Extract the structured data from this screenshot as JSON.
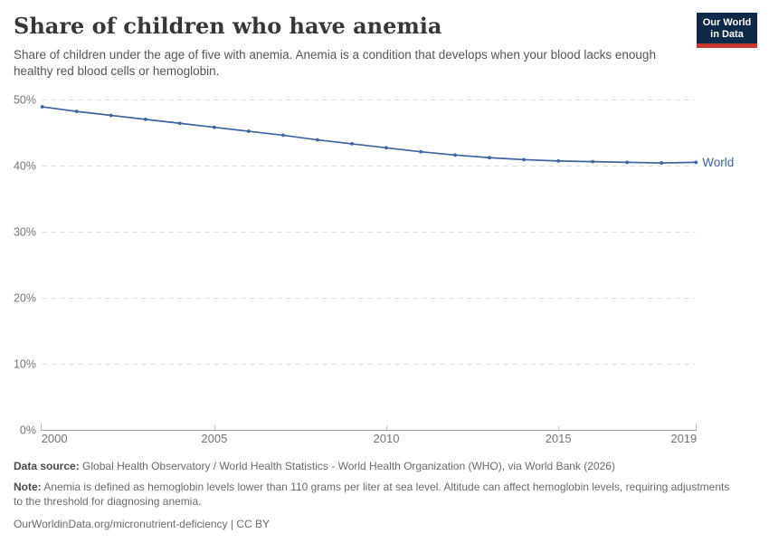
{
  "header": {
    "title": "Share of children who have anemia",
    "subtitle": "Share of children under the age of five with anemia. Anemia is a condition that develops when your blood lacks enough healthy red blood cells or hemoglobin.",
    "logo_line1": "Our World",
    "logo_line2": "in Data"
  },
  "colors": {
    "line": "#3f639e",
    "navy": "#0f2949",
    "red": "#c5392f",
    "grid": "#dcdcdc",
    "axis": "#a1a1a1",
    "minor_tick": "#bdbdbd",
    "tick_text": "#757575"
  },
  "chart_data": {
    "type": "line",
    "title": "Share of children who have anemia",
    "xlabel": "",
    "ylabel": "",
    "xlim": [
      2000,
      2019
    ],
    "ylim": [
      0,
      50
    ],
    "grid": "horizontal-dashed",
    "legend_position": "end-of-line-label",
    "x": [
      2000,
      2001,
      2002,
      2003,
      2004,
      2005,
      2006,
      2007,
      2008,
      2009,
      2010,
      2011,
      2012,
      2013,
      2014,
      2015,
      2016,
      2017,
      2018,
      2019
    ],
    "series": [
      {
        "name": "World",
        "color": "#3f639e",
        "values": [
          48.9,
          48.2,
          47.6,
          47.0,
          46.4,
          45.8,
          45.2,
          44.6,
          43.9,
          43.3,
          42.7,
          42.1,
          41.6,
          41.2,
          40.9,
          40.7,
          40.6,
          40.5,
          40.4,
          40.5
        ]
      }
    ],
    "y_ticks": [
      {
        "value": 0,
        "label": "0%"
      },
      {
        "value": 10,
        "label": "10%"
      },
      {
        "value": 20,
        "label": "20%"
      },
      {
        "value": 30,
        "label": "30%"
      },
      {
        "value": 40,
        "label": "40%"
      },
      {
        "value": 50,
        "label": "50%"
      }
    ],
    "x_ticks": [
      {
        "value": 2000,
        "label": "2000"
      },
      {
        "value": 2005,
        "label": "2005"
      },
      {
        "value": 2010,
        "label": "2010"
      },
      {
        "value": 2015,
        "label": "2015"
      },
      {
        "value": 2019,
        "label": "2019"
      }
    ]
  },
  "footer": {
    "data_source_label": "Data source:",
    "data_source_text": "Global Health Observatory / World Health Statistics - World Health Organization (WHO), via World Bank (2026)",
    "note_label": "Note:",
    "note_text": "Anemia is defined as hemoglobin levels lower than 110 grams per liter at sea level. Altitude can affect hemoglobin levels, requiring adjustments to the threshold for diagnosing anemia.",
    "attribution": "OurWorldinData.org/micronutrient-deficiency | CC BY"
  }
}
